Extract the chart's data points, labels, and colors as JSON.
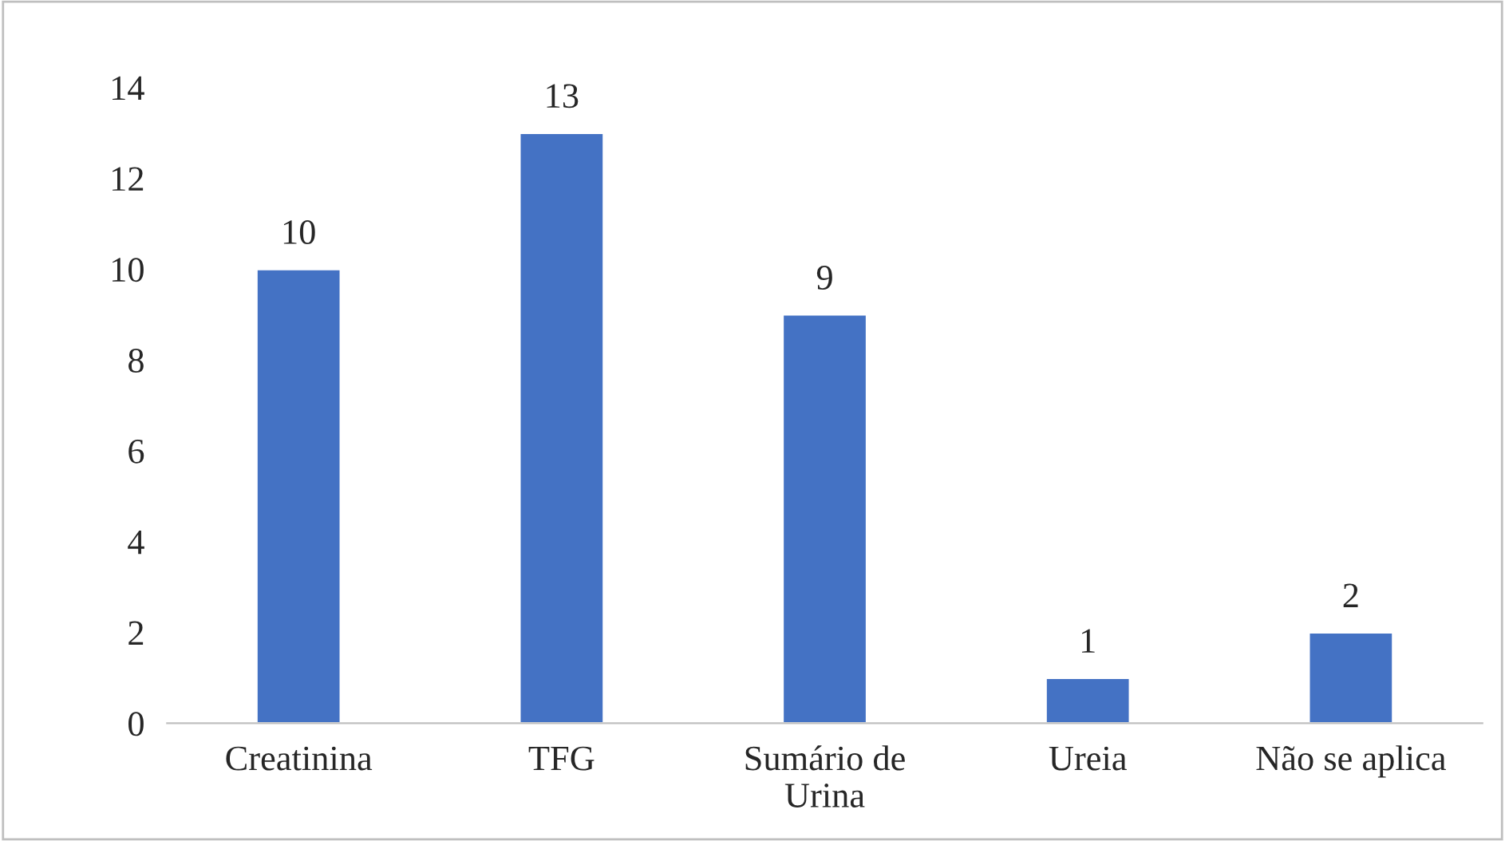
{
  "chart_data": {
    "type": "bar",
    "categories": [
      "Creatinina",
      "TFG",
      "Sumário de\nUrina",
      "Ureia",
      "Não se aplica"
    ],
    "values": [
      10,
      13,
      9,
      1,
      2
    ],
    "color": "#4472c4",
    "ylim": [
      0,
      14
    ],
    "yticks": [
      0,
      2,
      4,
      6,
      8,
      10,
      12,
      14
    ],
    "data_labels": true,
    "grid": false
  }
}
